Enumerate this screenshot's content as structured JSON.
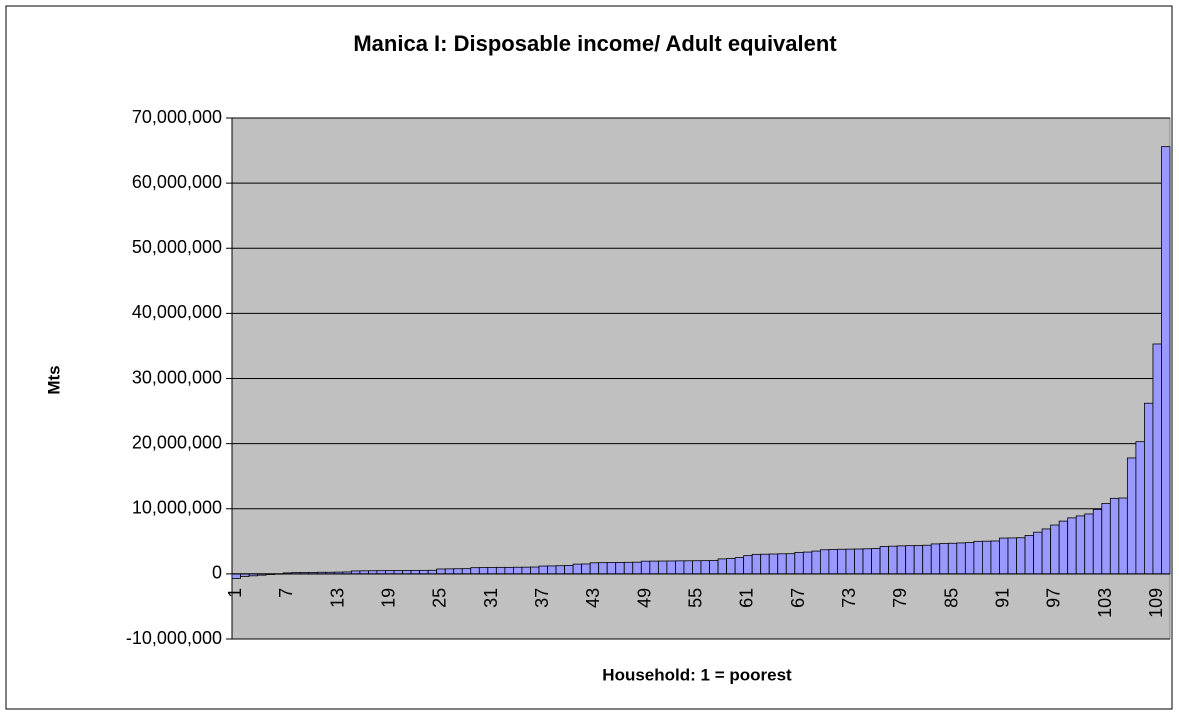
{
  "chart_data": {
    "type": "bar",
    "title": "Manica I: Disposable income/ Adult equivalent",
    "x_label": "Household: 1 = poorest",
    "y_label": "Mts",
    "categories": [
      "1",
      null,
      null,
      null,
      null,
      null,
      "7",
      null,
      null,
      null,
      null,
      null,
      "13",
      null,
      null,
      null,
      null,
      null,
      "19",
      null,
      null,
      null,
      null,
      null,
      "25",
      null,
      null,
      null,
      null,
      null,
      "31",
      null,
      null,
      null,
      null,
      null,
      "37",
      null,
      null,
      null,
      null,
      null,
      "43",
      null,
      null,
      null,
      null,
      null,
      "49",
      null,
      null,
      null,
      null,
      null,
      "55",
      null,
      null,
      null,
      null,
      null,
      "61",
      null,
      null,
      null,
      null,
      null,
      "67",
      null,
      null,
      null,
      null,
      null,
      "73",
      null,
      null,
      null,
      null,
      null,
      "79",
      null,
      null,
      null,
      null,
      null,
      "85",
      null,
      null,
      null,
      null,
      null,
      "91",
      null,
      null,
      null,
      null,
      null,
      "97",
      null,
      null,
      null,
      null,
      null,
      "103",
      null,
      null,
      null,
      null,
      null,
      "109",
      null
    ],
    "values": [
      -700000,
      -400000,
      -300000,
      -200000,
      -100000,
      -50000,
      150000,
      200000,
      200000,
      220000,
      250000,
      250000,
      270000,
      300000,
      450000,
      470000,
      480000,
      490000,
      500000,
      510000,
      520000,
      530000,
      540000,
      550000,
      750000,
      770000,
      790000,
      800000,
      950000,
      970000,
      980000,
      1000000,
      1000000,
      1020000,
      1030000,
      1050000,
      1200000,
      1220000,
      1250000,
      1300000,
      1500000,
      1520000,
      1700000,
      1720000,
      1740000,
      1760000,
      1780000,
      1800000,
      1950000,
      1960000,
      1970000,
      1980000,
      2000000,
      2010000,
      2020000,
      2030000,
      2050000,
      2300000,
      2350000,
      2500000,
      2800000,
      3000000,
      3020000,
      3050000,
      3080000,
      3100000,
      3300000,
      3350000,
      3500000,
      3700000,
      3750000,
      3780000,
      3800000,
      3820000,
      3850000,
      3900000,
      4200000,
      4250000,
      4300000,
      4330000,
      4360000,
      4400000,
      4600000,
      4650000,
      4700000,
      4750000,
      4800000,
      5000000,
      5020000,
      5050000,
      5500000,
      5520000,
      5550000,
      5900000,
      6400000,
      6900000,
      7500000,
      8100000,
      8600000,
      8900000,
      9200000,
      9900000,
      10800000,
      11600000,
      11650000,
      17800000,
      20300000,
      26200000,
      35300000,
      65600000
    ],
    "color": "#9999ff",
    "plot_background": "#c0c0c0",
    "ylim": [
      -10000000,
      70000000
    ],
    "yticks": [
      {
        "value": -10000000,
        "label": "-10,000,000"
      },
      0,
      {
        "value": 10000000,
        "label": "10,000,000"
      },
      {
        "value": 20000000,
        "label": "20,000,000"
      },
      {
        "value": 30000000,
        "label": "30,000,000"
      },
      {
        "value": 40000000,
        "label": "40,000,000"
      },
      {
        "value": 50000000,
        "label": "50,000,000"
      },
      {
        "value": 60000000,
        "label": "60,000,000"
      },
      {
        "value": 70000000,
        "label": "70,000,000"
      }
    ],
    "grid": true
  }
}
